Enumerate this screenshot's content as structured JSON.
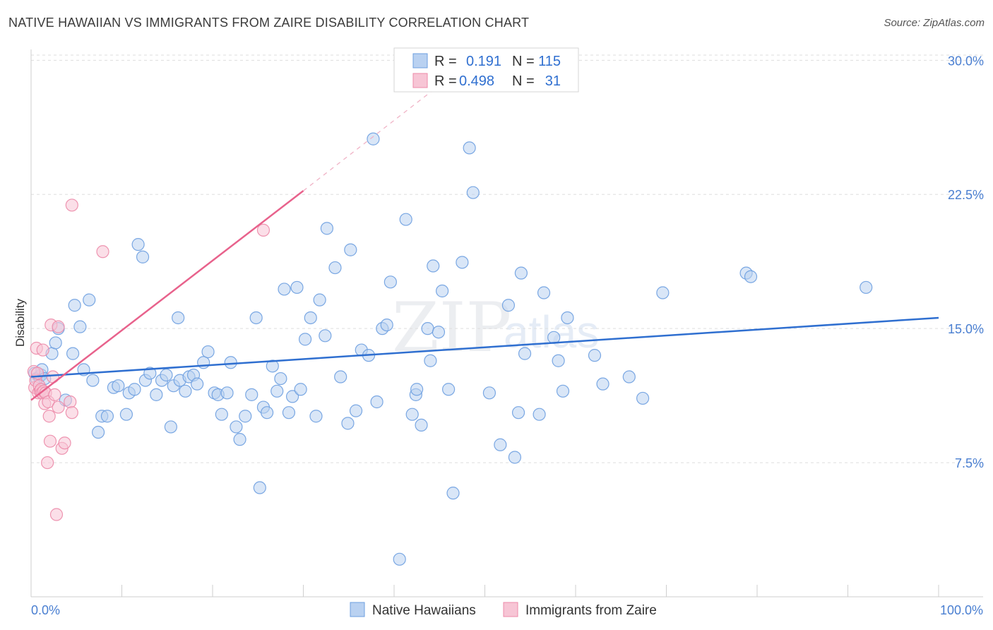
{
  "title": "NATIVE HAWAIIAN VS IMMIGRANTS FROM ZAIRE DISABILITY CORRELATION CHART",
  "source": "Source: ZipAtlas.com",
  "watermark": {
    "zip": "ZIP",
    "atlas": "atlas"
  },
  "colors": {
    "blue": "#6d9fe0",
    "blue_fill": "#b9d1f1",
    "blue_line": "#2f6fd0",
    "pink": "#ec8aa9",
    "pink_fill": "#f7c5d5",
    "pink_line": "#e8628c",
    "tick_text": "#4a7fd1"
  },
  "chart_data": {
    "type": "scatter",
    "title": "NATIVE HAWAIIAN VS IMMIGRANTS FROM ZAIRE DISABILITY CORRELATION CHART",
    "xlabel": "",
    "ylabel": "Disability",
    "xlim": [
      0,
      100
    ],
    "ylim": [
      0,
      31
    ],
    "x_tick_labels": [
      "0.0%",
      "100.0%"
    ],
    "y_ticks": [
      7.5,
      15.0,
      22.5,
      30.0
    ],
    "y_tick_labels": [
      "7.5%",
      "15.0%",
      "22.5%",
      "30.0%"
    ],
    "grid": true,
    "legend_top": [
      {
        "r_label": "R =",
        "r_value": "0.191",
        "n_label": "N =",
        "n_value": "115"
      },
      {
        "r_label": "R =",
        "r_value": "0.498",
        "n_label": "N =",
        "n_value": "31"
      }
    ],
    "series": [
      {
        "name": "Native Hawaiians",
        "r": 0.191,
        "n": 115,
        "trend": {
          "x0": 0,
          "y0": 12.3,
          "x1": 100,
          "y1": 15.6
        },
        "points": [
          [
            0.4,
            12.5
          ],
          [
            0.6,
            12.2
          ],
          [
            0.9,
            12.3
          ],
          [
            1.1,
            12.4
          ],
          [
            1.2,
            12.7
          ],
          [
            1.5,
            12.2
          ],
          [
            2.3,
            13.6
          ],
          [
            2.7,
            14.2
          ],
          [
            3.0,
            15.0
          ],
          [
            3.8,
            11.0
          ],
          [
            4.6,
            13.6
          ],
          [
            4.8,
            16.3
          ],
          [
            5.4,
            15.1
          ],
          [
            5.8,
            12.7
          ],
          [
            6.4,
            16.6
          ],
          [
            6.8,
            12.1
          ],
          [
            7.4,
            9.2
          ],
          [
            7.8,
            10.1
          ],
          [
            8.4,
            10.1
          ],
          [
            9.1,
            11.7
          ],
          [
            9.6,
            11.8
          ],
          [
            10.5,
            10.2
          ],
          [
            10.8,
            11.4
          ],
          [
            11.4,
            11.6
          ],
          [
            11.8,
            19.7
          ],
          [
            12.3,
            19.0
          ],
          [
            12.6,
            12.1
          ],
          [
            13.1,
            12.5
          ],
          [
            13.8,
            11.3
          ],
          [
            14.4,
            12.1
          ],
          [
            14.9,
            12.4
          ],
          [
            15.4,
            9.5
          ],
          [
            15.7,
            11.8
          ],
          [
            16.2,
            15.6
          ],
          [
            16.4,
            12.1
          ],
          [
            17.0,
            11.5
          ],
          [
            17.4,
            12.3
          ],
          [
            17.9,
            12.4
          ],
          [
            18.3,
            11.9
          ],
          [
            19.0,
            13.1
          ],
          [
            19.5,
            13.7
          ],
          [
            20.2,
            11.4
          ],
          [
            20.6,
            11.3
          ],
          [
            21.0,
            10.2
          ],
          [
            21.6,
            11.4
          ],
          [
            22.0,
            13.1
          ],
          [
            22.6,
            9.5
          ],
          [
            23.0,
            8.8
          ],
          [
            23.6,
            10.1
          ],
          [
            24.3,
            11.3
          ],
          [
            24.8,
            15.6
          ],
          [
            25.2,
            6.1
          ],
          [
            25.6,
            10.6
          ],
          [
            26.0,
            10.3
          ],
          [
            26.6,
            12.9
          ],
          [
            27.1,
            11.5
          ],
          [
            27.5,
            12.2
          ],
          [
            27.9,
            17.2
          ],
          [
            28.4,
            10.3
          ],
          [
            28.8,
            11.2
          ],
          [
            29.3,
            17.3
          ],
          [
            29.7,
            11.6
          ],
          [
            30.2,
            14.4
          ],
          [
            30.8,
            15.6
          ],
          [
            31.4,
            10.1
          ],
          [
            31.8,
            16.6
          ],
          [
            32.4,
            14.6
          ],
          [
            32.6,
            20.6
          ],
          [
            33.5,
            18.4
          ],
          [
            34.1,
            12.3
          ],
          [
            34.9,
            9.7
          ],
          [
            35.2,
            19.4
          ],
          [
            35.8,
            10.4
          ],
          [
            36.4,
            13.8
          ],
          [
            37.2,
            13.5
          ],
          [
            37.7,
            25.6
          ],
          [
            38.1,
            10.9
          ],
          [
            38.7,
            15.0
          ],
          [
            39.2,
            15.2
          ],
          [
            39.6,
            17.6
          ],
          [
            40.6,
            2.1
          ],
          [
            41.3,
            21.1
          ],
          [
            42.0,
            10.2
          ],
          [
            42.4,
            11.3
          ],
          [
            42.5,
            11.6
          ],
          [
            43.0,
            9.6
          ],
          [
            43.7,
            15.0
          ],
          [
            44.0,
            13.2
          ],
          [
            44.3,
            18.5
          ],
          [
            44.9,
            14.8
          ],
          [
            45.3,
            17.1
          ],
          [
            46.0,
            11.6
          ],
          [
            46.5,
            5.8
          ],
          [
            47.5,
            18.7
          ],
          [
            48.3,
            25.1
          ],
          [
            48.7,
            22.6
          ],
          [
            50.5,
            11.4
          ],
          [
            51.7,
            8.5
          ],
          [
            52.6,
            16.3
          ],
          [
            53.3,
            7.8
          ],
          [
            53.7,
            10.3
          ],
          [
            54.0,
            18.1
          ],
          [
            54.4,
            13.6
          ],
          [
            56.0,
            10.2
          ],
          [
            56.5,
            17.0
          ],
          [
            57.6,
            14.5
          ],
          [
            58.1,
            13.2
          ],
          [
            58.6,
            11.5
          ],
          [
            59.1,
            15.6
          ],
          [
            62.1,
            13.5
          ],
          [
            63.0,
            11.9
          ],
          [
            65.9,
            12.3
          ],
          [
            67.4,
            11.1
          ],
          [
            69.6,
            17.0
          ],
          [
            78.8,
            18.1
          ],
          [
            79.3,
            17.9
          ],
          [
            92.0,
            17.3
          ]
        ]
      },
      {
        "name": "Immigrants from Zaire",
        "r": 0.498,
        "n": 31,
        "trend": {
          "x0": 0,
          "y0": 11.0,
          "x1": 30,
          "y1": 22.7,
          "dash_to_x": 46,
          "dash_to_y": 29.0
        },
        "points": [
          [
            0.3,
            12.6
          ],
          [
            0.4,
            11.7
          ],
          [
            0.5,
            12.1
          ],
          [
            0.6,
            13.9
          ],
          [
            0.7,
            12.5
          ],
          [
            0.8,
            11.4
          ],
          [
            0.9,
            11.8
          ],
          [
            1.0,
            11.5
          ],
          [
            1.1,
            11.6
          ],
          [
            1.2,
            11.4
          ],
          [
            1.3,
            13.8
          ],
          [
            1.4,
            11.5
          ],
          [
            1.5,
            10.8
          ],
          [
            1.6,
            11.4
          ],
          [
            1.8,
            7.5
          ],
          [
            1.9,
            10.9
          ],
          [
            2.0,
            10.1
          ],
          [
            2.1,
            8.7
          ],
          [
            2.2,
            15.2
          ],
          [
            2.4,
            12.3
          ],
          [
            2.6,
            11.3
          ],
          [
            2.8,
            4.6
          ],
          [
            3.0,
            15.1
          ],
          [
            3.0,
            10.6
          ],
          [
            3.4,
            8.3
          ],
          [
            3.7,
            8.6
          ],
          [
            4.3,
            10.9
          ],
          [
            4.5,
            10.3
          ],
          [
            4.5,
            21.9
          ],
          [
            7.9,
            19.3
          ],
          [
            25.6,
            20.5
          ]
        ]
      }
    ]
  }
}
